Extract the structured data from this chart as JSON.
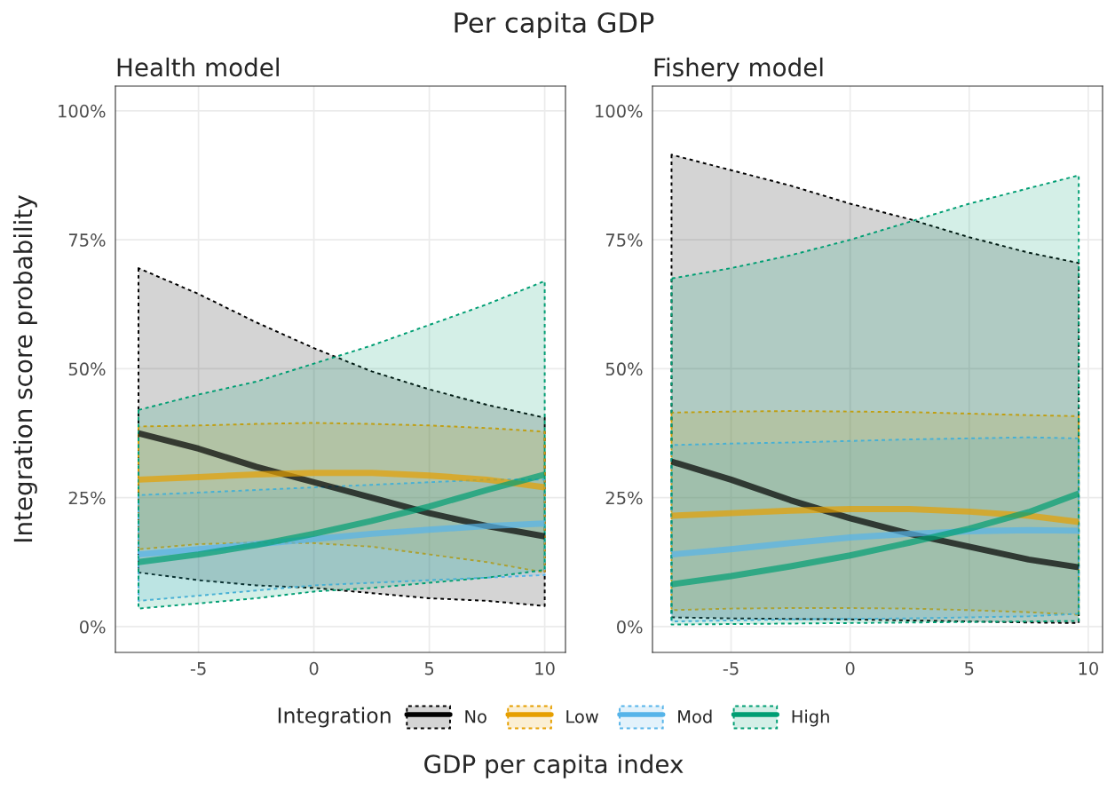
{
  "chart_data": [
    {
      "type": "line",
      "title": "Health model",
      "annotations": [
        "Per capita GDP"
      ],
      "xlabel": "GDP per capita index",
      "ylabel": "Integration score probability",
      "legend_title": "Integration",
      "legend": "bottom",
      "grid": true,
      "x": [
        -7.6,
        -5,
        -2.5,
        0,
        2.5,
        5,
        7.5,
        10
      ],
      "xlim": [
        -8.6,
        10.9
      ],
      "xticks": [
        {
          "value": -5,
          "label": "-5"
        },
        0,
        5,
        10
      ],
      "ylim": [
        -5,
        104.8
      ],
      "yticks": [
        {
          "value": 0,
          "label": "0%"
        },
        {
          "value": 25,
          "label": "25%"
        },
        {
          "value": 50,
          "label": "50%"
        },
        {
          "value": 75,
          "label": "75%"
        },
        {
          "value": 100,
          "label": "100%"
        }
      ],
      "series": [
        {
          "name": "No",
          "color": "#000000",
          "values": [
            37.5,
            34.5,
            31,
            28,
            25,
            22,
            19.5,
            17.5
          ],
          "lower": [
            10.5,
            9,
            8,
            7.5,
            6.5,
            5.5,
            5,
            4
          ],
          "upper": [
            69.5,
            64.5,
            59,
            54,
            49.5,
            46,
            43,
            40.5
          ]
        },
        {
          "name": "Low",
          "color": "#e69f00",
          "values": [
            28.5,
            29,
            29.5,
            29.8,
            29.8,
            29.3,
            28.5,
            27
          ],
          "lower": [
            15,
            16,
            16.3,
            16.2,
            15.5,
            14,
            12.5,
            10.5
          ],
          "upper": [
            38.8,
            39,
            39.3,
            39.5,
            39.3,
            39,
            38.5,
            37.8
          ]
        },
        {
          "name": "Mod",
          "color": "#56b4e9",
          "values": [
            14,
            15,
            16,
            17,
            18,
            18.8,
            19.5,
            20
          ],
          "lower": [
            5,
            6,
            7,
            8,
            8.5,
            9,
            9.5,
            10
          ],
          "upper": [
            25.5,
            26,
            26.5,
            27,
            27.5,
            28,
            28.5,
            28.5
          ]
        },
        {
          "name": "High",
          "color": "#009e73",
          "values": [
            12.5,
            14,
            15.8,
            18,
            20.5,
            23.3,
            26.5,
            29.5
          ],
          "lower": [
            3.5,
            4.5,
            5.5,
            6.8,
            7.5,
            8.5,
            9.5,
            11
          ],
          "upper": [
            42,
            45,
            47.5,
            51,
            54.5,
            58.5,
            62.5,
            67
          ]
        }
      ]
    },
    {
      "type": "line",
      "title": "Fishery model",
      "grid": true,
      "x": [
        -7.5,
        -5,
        -2.5,
        0,
        2.5,
        5,
        7.5,
        9.6
      ],
      "xlim": [
        -8.3,
        10.6
      ],
      "xticks": [
        {
          "value": -5,
          "label": "-5"
        },
        0,
        5,
        10
      ],
      "ylim": [
        -5,
        104.8
      ],
      "yticks": [
        {
          "value": 0,
          "label": "0%"
        },
        {
          "value": 25,
          "label": "25%"
        },
        {
          "value": 50,
          "label": "50%"
        },
        {
          "value": 75,
          "label": "75%"
        },
        {
          "value": 100,
          "label": "100%"
        }
      ],
      "series": [
        {
          "color": "#000000",
          "values": [
            32,
            28.5,
            24.5,
            21,
            18,
            15.5,
            13,
            11.5
          ],
          "lower": [
            1.8,
            1.6,
            1.5,
            1.4,
            1.2,
            1,
            0.8,
            0.7
          ],
          "upper": [
            91.5,
            88.5,
            85.5,
            82,
            79,
            75.5,
            72.5,
            70.5
          ]
        },
        {
          "color": "#e69f00",
          "values": [
            21.5,
            22,
            22.5,
            22.8,
            22.8,
            22.3,
            21.5,
            20.3
          ],
          "lower": [
            3.2,
            3.5,
            3.6,
            3.6,
            3.5,
            3.2,
            2.8,
            2.3
          ],
          "upper": [
            41.5,
            41.7,
            41.8,
            41.7,
            41.6,
            41.3,
            41,
            40.8
          ]
        },
        {
          "color": "#56b4e9",
          "values": [
            14,
            15,
            16.2,
            17.3,
            18,
            18.5,
            18.7,
            18.6
          ],
          "lower": [
            1,
            1.2,
            1.4,
            1.5,
            1.6,
            1.8,
            2,
            2.5
          ],
          "upper": [
            35.2,
            35.5,
            35.7,
            36,
            36.3,
            36.5,
            36.7,
            36.5
          ]
        },
        {
          "color": "#009e73",
          "values": [
            8.2,
            9.8,
            11.7,
            13.8,
            16.3,
            19,
            22.2,
            25.8
          ],
          "lower": [
            0.4,
            0.5,
            0.6,
            0.7,
            0.8,
            0.9,
            1.0,
            1.1
          ],
          "upper": [
            67.5,
            69.5,
            72,
            75,
            78.5,
            82,
            85,
            87.5
          ]
        }
      ]
    }
  ]
}
